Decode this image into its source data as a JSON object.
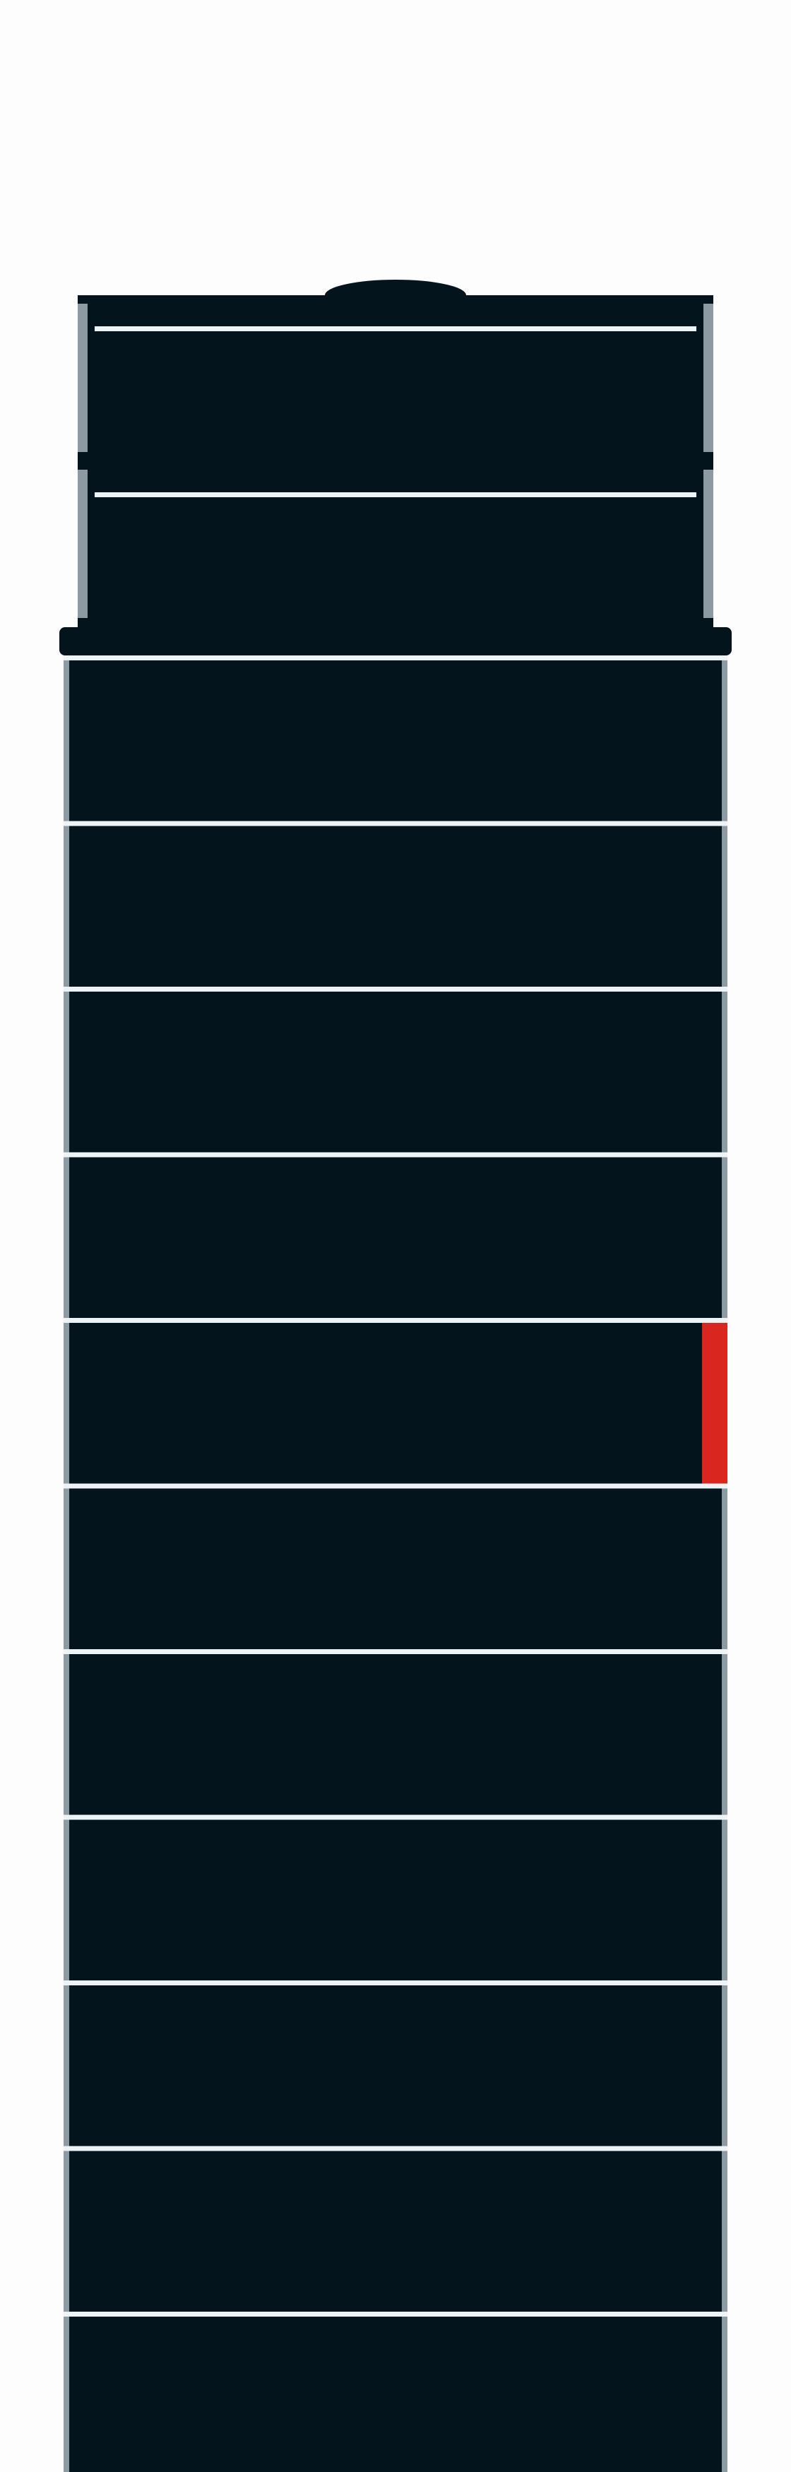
{
  "colors": {
    "background": "#fdfdfd",
    "tower_body": "#04141c",
    "floor_line": "#eef3f6",
    "side_edge": "#8e9aa1",
    "accent_red": "#d9271f"
  },
  "structure": {
    "upper_levels": 2,
    "lower_levels": 11,
    "highlighted_level": 5
  },
  "icons": {
    "top_cap": "dome-icon",
    "side_marker": "red-marker-icon"
  }
}
